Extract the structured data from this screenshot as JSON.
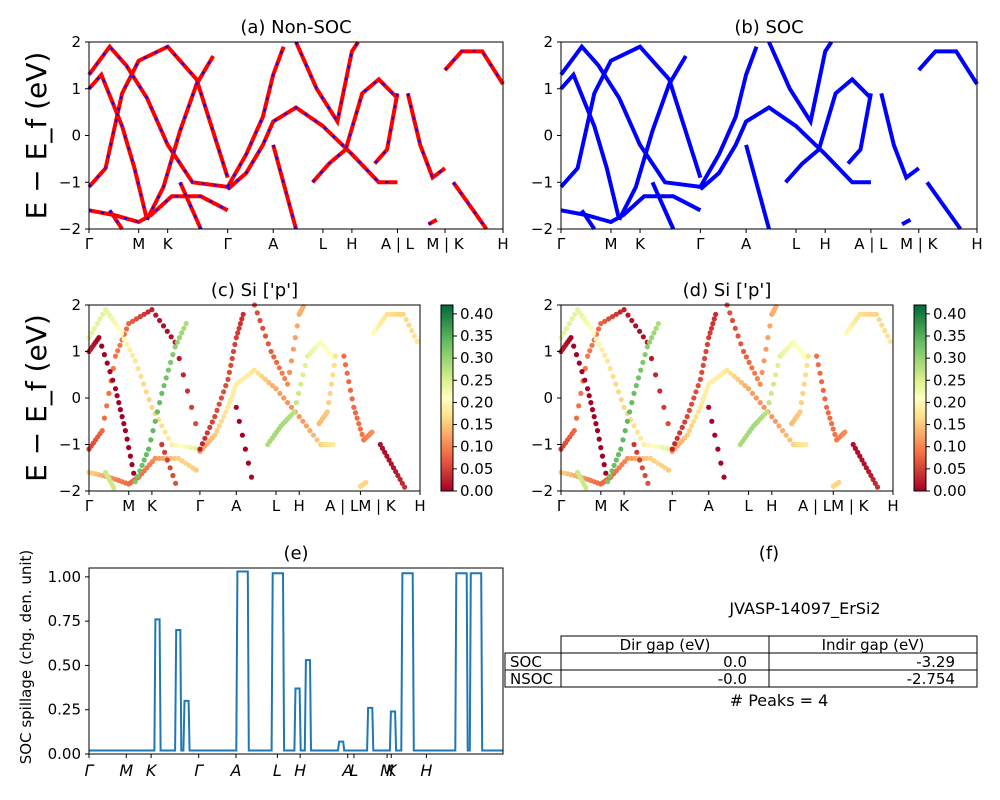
{
  "chart_data": [
    {
      "id": "a",
      "type": "line",
      "title": "(a) Non-SOC",
      "ylabel": "E − E_f (eV)",
      "ylim": [
        -2,
        2
      ],
      "yticks": [
        "2",
        "1",
        "0",
        "−1",
        "−2"
      ],
      "xticks": [
        "Γ",
        "M",
        "K",
        "Γ",
        "A",
        "L",
        "H",
        "A | L",
        "M | K",
        "H"
      ],
      "series": [
        {
          "color": "#ff0000",
          "dash_color": "#0000ff",
          "style": "dashed-overlay"
        }
      ]
    },
    {
      "id": "b",
      "type": "line",
      "title": "(b) SOC",
      "ylim": [
        -2,
        2
      ],
      "yticks": [
        "2",
        "1",
        "0",
        "−1",
        "−2"
      ],
      "xticks": [
        "Γ",
        "M",
        "K",
        "Γ",
        "A",
        "L",
        "H",
        "A | L",
        "M | K",
        "H"
      ],
      "series": [
        {
          "color": "#0000ff"
        }
      ]
    },
    {
      "id": "c",
      "type": "scatter",
      "title": "(c)  Si ['p']",
      "ylabel": "E − E_f (eV)",
      "ylim": [
        -2,
        2
      ],
      "yticks": [
        "2",
        "1",
        "0",
        "−1",
        "−2"
      ],
      "xticks": [
        "Γ",
        "M",
        "K",
        "Γ",
        "A",
        "L",
        "H",
        "A | LM | K",
        "H"
      ],
      "colorbar": {
        "colormap": "RdYlGn",
        "ticks": [
          "0.40",
          "0.35",
          "0.30",
          "0.25",
          "0.20",
          "0.15",
          "0.10",
          "0.05",
          "0.00"
        ],
        "range": [
          0.0,
          0.42
        ]
      }
    },
    {
      "id": "d",
      "type": "scatter",
      "title": "(d) Si ['p']",
      "ylim": [
        -2,
        2
      ],
      "yticks": [
        "2",
        "1",
        "0",
        "−1",
        "−2"
      ],
      "xticks": [
        "Γ",
        "M",
        "K",
        "Γ",
        "A",
        "L",
        "H",
        "A | LM | K",
        "H"
      ],
      "colorbar": {
        "colormap": "RdYlGn",
        "ticks": [
          "0.40",
          "0.35",
          "0.30",
          "0.25",
          "0.20",
          "0.15",
          "0.10",
          "0.05",
          "0.00"
        ],
        "range": [
          0.0,
          0.42
        ]
      }
    },
    {
      "id": "e",
      "type": "line",
      "title": "(e)",
      "ylabel": "SOC spillage (chg. den. unit)",
      "ylim": [
        0,
        1.05
      ],
      "yticks": [
        "1.00",
        "0.75",
        "0.50",
        "0.25",
        "0.00"
      ],
      "xticks": [
        "Γ",
        "M",
        "K",
        "Γ",
        "A",
        "L",
        "H",
        "A",
        "L",
        "M",
        "K",
        "H"
      ],
      "series": [
        {
          "color": "#1f77b4"
        }
      ],
      "peaks": [
        {
          "x": 0.165,
          "y": 0.76
        },
        {
          "x": 0.215,
          "y": 0.7
        },
        {
          "x": 0.235,
          "y": 0.3
        },
        {
          "x": 0.37,
          "y": 1.03
        },
        {
          "x": 0.455,
          "y": 1.02
        },
        {
          "x": 0.505,
          "y": 0.37
        },
        {
          "x": 0.53,
          "y": 0.53
        },
        {
          "x": 0.61,
          "y": 0.07
        },
        {
          "x": 0.68,
          "y": 0.26
        },
        {
          "x": 0.735,
          "y": 0.24
        },
        {
          "x": 0.77,
          "y": 1.02
        },
        {
          "x": 0.9,
          "y": 1.02
        },
        {
          "x": 0.935,
          "y": 1.02
        }
      ]
    },
    {
      "id": "f",
      "type": "table",
      "title": "(f)",
      "subtitle": "JVASP-14097_ErSi2",
      "columns": [
        "Dir gap (eV)",
        "Indir gap (eV)"
      ],
      "rows": [
        {
          "label": "SOC",
          "values": [
            "0.0",
            "-3.29"
          ]
        },
        {
          "label": "NSOC",
          "values": [
            "-0.0",
            "-2.754"
          ]
        }
      ],
      "footnote": "# Peaks = 4"
    }
  ]
}
